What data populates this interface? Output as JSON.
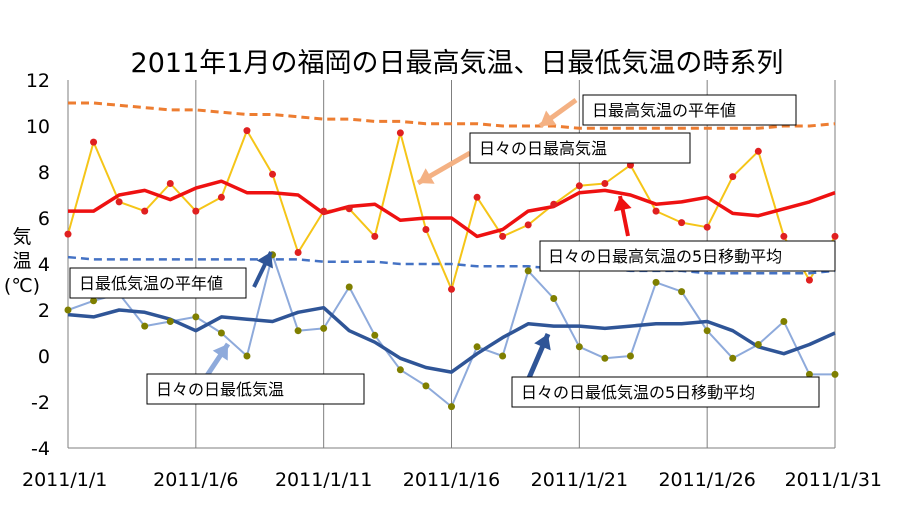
{
  "chart_data": {
    "type": "line",
    "title": "2011年1月の福岡の日最高気温、日最低気温の時系列",
    "ylabel_lines": [
      "気",
      "温",
      "(℃)"
    ],
    "ylim": [
      -4,
      12
    ],
    "yticks": [
      12,
      10,
      8,
      6,
      4,
      2,
      0,
      -2,
      -4
    ],
    "xlim": [
      1,
      31
    ],
    "xticks": [
      {
        "day": 1,
        "label": "2011/1/1"
      },
      {
        "day": 6,
        "label": "2011/1/6"
      },
      {
        "day": 11,
        "label": "2011/1/11"
      },
      {
        "day": 16,
        "label": "2011/1/16"
      },
      {
        "day": 21,
        "label": "2011/1/21"
      },
      {
        "day": 26,
        "label": "2011/1/26"
      },
      {
        "day": 31,
        "label": "2011/1/31"
      }
    ],
    "grid": "vertical",
    "x": [
      1,
      2,
      3,
      4,
      5,
      6,
      7,
      8,
      9,
      10,
      11,
      12,
      13,
      14,
      15,
      16,
      17,
      18,
      19,
      20,
      21,
      22,
      23,
      24,
      25,
      26,
      27,
      28,
      29,
      30,
      31
    ],
    "series": [
      {
        "name": "日最高気温の平年値",
        "color": "#ed7d31",
        "style": "dashed",
        "values": [
          11.0,
          11.0,
          10.9,
          10.8,
          10.7,
          10.7,
          10.6,
          10.5,
          10.5,
          10.4,
          10.3,
          10.3,
          10.2,
          10.2,
          10.1,
          10.1,
          10.1,
          10.0,
          10.0,
          10.0,
          9.9,
          9.9,
          9.9,
          9.9,
          9.9,
          9.9,
          9.9,
          9.9,
          10.0,
          10.0,
          10.1
        ]
      },
      {
        "name": "日々の日最高気温",
        "color": "#f5c518",
        "marker_color": "#e02020",
        "style": "solid",
        "values": [
          5.3,
          9.3,
          6.7,
          6.3,
          7.5,
          6.3,
          6.9,
          9.8,
          7.9,
          4.5,
          6.3,
          6.4,
          5.2,
          9.7,
          5.5,
          2.9,
          6.9,
          5.2,
          5.7,
          6.6,
          7.4,
          7.5,
          8.3,
          6.3,
          5.8,
          5.6,
          7.8,
          8.9,
          5.2,
          3.3,
          5.2
        ]
      },
      {
        "name": "日々の日最高気温の5日移動平均",
        "color": "#ee1111",
        "style": "solid",
        "values": [
          6.3,
          6.3,
          7.0,
          7.2,
          6.8,
          7.3,
          7.6,
          7.1,
          7.1,
          7.0,
          6.2,
          6.5,
          6.6,
          5.9,
          6.0,
          6.0,
          5.2,
          5.5,
          6.3,
          6.5,
          7.1,
          7.2,
          7.0,
          6.6,
          6.7,
          6.9,
          6.2,
          6.1,
          6.4,
          6.7,
          7.1
        ]
      },
      {
        "name": "日最低気温の平年値",
        "color": "#4472c4",
        "style": "dashed",
        "values": [
          4.3,
          4.2,
          4.2,
          4.2,
          4.2,
          4.2,
          4.2,
          4.2,
          4.2,
          4.2,
          4.1,
          4.1,
          4.1,
          4.0,
          4.0,
          4.0,
          3.9,
          3.9,
          3.9,
          3.8,
          3.8,
          3.8,
          3.7,
          3.7,
          3.7,
          3.6,
          3.6,
          3.6,
          3.6,
          3.6,
          3.7
        ]
      },
      {
        "name": "日々の日最低気温",
        "color": "#8eaadb",
        "marker_color": "#7f7f00",
        "style": "solid",
        "values": [
          2.0,
          2.4,
          2.7,
          1.3,
          1.5,
          1.7,
          1.0,
          0.0,
          4.4,
          1.1,
          1.2,
          3.0,
          0.9,
          -0.6,
          -1.3,
          -2.2,
          0.4,
          0.0,
          3.7,
          2.5,
          0.4,
          -0.1,
          0.0,
          3.2,
          2.8,
          1.1,
          -0.1,
          0.5,
          1.5,
          -0.8,
          -0.8
        ]
      },
      {
        "name": "日々の日最低気温の5日移動平均",
        "color": "#2f5597",
        "style": "solid",
        "values": [
          1.8,
          1.7,
          2.0,
          1.9,
          1.6,
          1.1,
          1.7,
          1.6,
          1.5,
          1.9,
          2.1,
          1.1,
          0.6,
          -0.1,
          -0.5,
          -0.7,
          0.1,
          0.8,
          1.4,
          1.3,
          1.3,
          1.2,
          1.3,
          1.4,
          1.4,
          1.5,
          1.1,
          0.4,
          0.1,
          0.5,
          1.0
        ]
      }
    ],
    "annotations": [
      {
        "text": "日最高気温の平年値",
        "series": 0
      },
      {
        "text": "日々の日最高気温",
        "series": 1
      },
      {
        "text": "日々の日最高気温の5日移動平均",
        "series": 2
      },
      {
        "text": "日最低気温の平年値",
        "series": 3
      },
      {
        "text": "日々の日最低気温",
        "series": 4
      },
      {
        "text": "日々の日最低気温の5日移動平均",
        "series": 5
      }
    ]
  }
}
